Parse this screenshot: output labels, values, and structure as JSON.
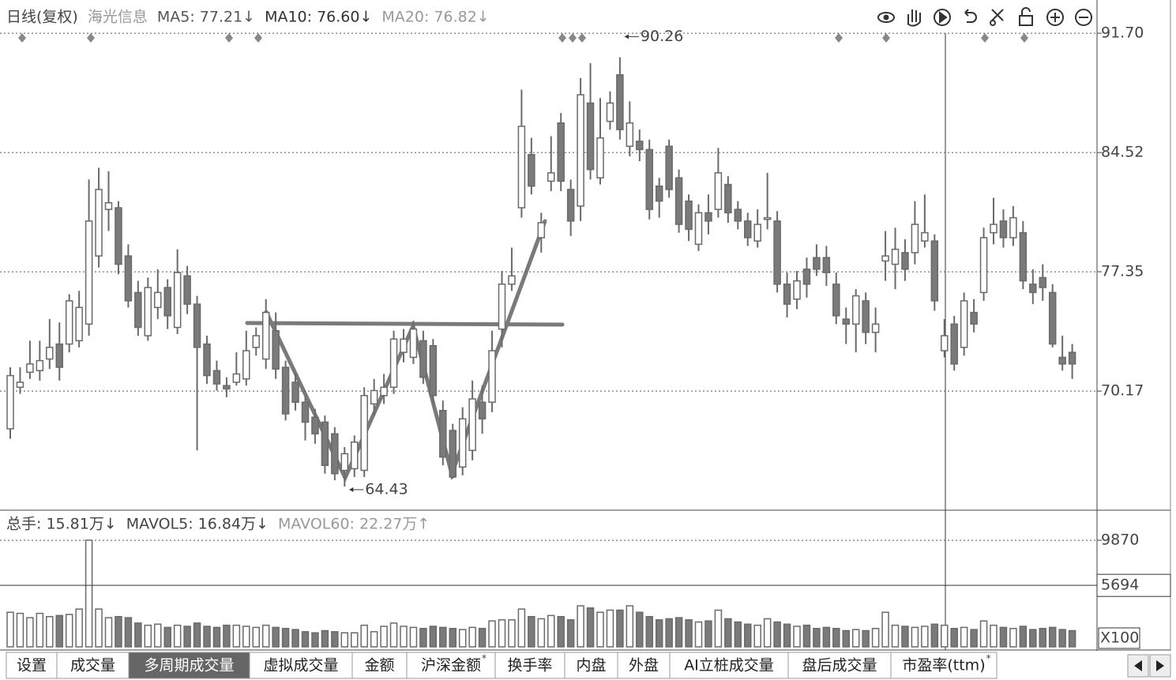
{
  "chart_data": [
    {
      "type": "candlestick",
      "header": [
        {
          "text": "日线(复权)",
          "color": "#444"
        },
        {
          "text": "海光信息",
          "color": "#999"
        },
        {
          "text": "MA5: 77.21↓",
          "color": "#555"
        },
        {
          "text": "MA10: 76.60↓",
          "color": "#333"
        },
        {
          "text": "MA20: 76.82↓",
          "color": "#999"
        }
      ],
      "open": [
        67.9,
        70.4,
        71.3,
        71.4,
        72.1,
        73.0,
        73.0,
        73.2,
        74.2,
        78.3,
        81.1,
        81.2,
        78.3,
        76.1,
        73.5,
        75.2,
        76.4,
        74.0,
        77.1,
        75.4,
        73.0,
        71.4,
        70.5,
        70.7,
        70.9,
        72.8,
        72.1,
        73.8,
        71.6,
        70.7,
        69.5,
        68.6,
        68.3,
        67.6,
        65.4,
        65.5,
        65.4,
        69.4,
        69.9,
        70.4,
        72.5,
        72.2,
        73.2,
        72.9,
        69.0,
        67.8,
        65.6,
        66.6,
        69.5,
        69.5,
        73.9,
        76.6,
        81.2,
        84.4,
        79.4,
        82.8,
        86.3,
        82.3,
        81.3,
        87.5,
        83.0,
        86.4,
        89.2,
        84.9,
        85.2,
        84.7,
        82.5,
        84.9,
        83.0,
        81.6,
        79.0,
        80.9,
        81.1,
        82.6,
        81.1,
        80.4,
        79.2,
        80.5,
        80.4,
        76.6,
        75.7,
        77.5,
        78.2,
        78.2,
        76.6,
        74.5,
        74.2,
        75.6,
        73.7,
        78.0,
        77.8,
        78.5,
        78.5,
        79.2,
        79.2,
        72.6,
        74.2,
        72.8,
        74.9,
        76.1,
        79.7,
        80.4,
        79.4,
        79.7,
        76.6,
        77.0,
        76.1,
        72.2,
        72.5
      ],
      "high": [
        71.6,
        71.6,
        73.2,
        73.2,
        74.5,
        74.3,
        76.0,
        76.2,
        82.9,
        83.6,
        83.4,
        81.6,
        79.0,
        76.8,
        77.0,
        77.5,
        76.9,
        78.7,
        77.7,
        75.9,
        73.5,
        72.0,
        71.0,
        72.5,
        73.8,
        74.0,
        75.7,
        74.9,
        72.0,
        71.2,
        69.9,
        69.1,
        68.7,
        68.0,
        66.8,
        67.5,
        70.4,
        70.9,
        71.2,
        73.8,
        73.9,
        74.4,
        73.8,
        73.3,
        69.6,
        68.2,
        69.2,
        70.8,
        70.5,
        73.8,
        77.4,
        78.8,
        88.3,
        85.4,
        80.9,
        85.5,
        86.9,
        82.9,
        89.0,
        89.9,
        87.8,
        88.2,
        90.26,
        87.6,
        85.9,
        85.3,
        83.0,
        85.3,
        83.5,
        82.0,
        81.4,
        82.0,
        84.8,
        83.1,
        81.6,
        80.9,
        81.1,
        83.3,
        81.0,
        77.3,
        77.4,
        78.2,
        79.0,
        78.9,
        77.3,
        75.2,
        76.3,
        76.1,
        75.2,
        79.8,
        80.0,
        79.3,
        81.6,
        82.0,
        79.6,
        74.5,
        74.7,
        76.1,
        75.7,
        80.0,
        81.8,
        81.1,
        81.3,
        80.4,
        77.5,
        77.8,
        76.6,
        73.5,
        73.0
      ],
      "low": [
        67.3,
        70.0,
        70.9,
        70.8,
        71.5,
        70.8,
        72.5,
        72.8,
        73.5,
        77.6,
        79.8,
        77.2,
        75.2,
        73.5,
        73.2,
        74.5,
        73.9,
        73.6,
        74.8,
        66.6,
        70.6,
        70.2,
        69.8,
        70.5,
        70.5,
        72.3,
        71.5,
        70.9,
        68.4,
        69.0,
        67.2,
        67.0,
        65.2,
        64.8,
        64.43,
        65.0,
        65.0,
        68.7,
        69.4,
        70.0,
        71.9,
        71.8,
        70.6,
        69.4,
        65.7,
        64.9,
        65.1,
        66.0,
        67.6,
        68.9,
        72.8,
        76.2,
        80.6,
        82.0,
        78.5,
        82.2,
        82.2,
        79.5,
        80.4,
        82.9,
        82.6,
        85.9,
        85.3,
        84.3,
        84.0,
        80.5,
        80.6,
        81.8,
        79.7,
        79.2,
        78.6,
        79.6,
        80.6,
        80.3,
        79.9,
        78.9,
        78.8,
        79.9,
        76.1,
        74.6,
        75.1,
        75.8,
        77.1,
        76.5,
        74.2,
        73.0,
        72.5,
        73.0,
        72.5,
        76.8,
        76.3,
        76.8,
        77.8,
        78.8,
        75.0,
        72.2,
        71.4,
        72.3,
        73.7,
        75.6,
        79.0,
        78.8,
        78.9,
        76.3,
        75.4,
        75.6,
        72.8,
        71.4,
        70.9
      ],
      "close": [
        71.1,
        70.7,
        71.8,
        72.0,
        72.8,
        71.6,
        75.6,
        75.2,
        80.4,
        82.3,
        81.5,
        77.8,
        75.6,
        74.0,
        76.4,
        76.1,
        74.7,
        77.3,
        75.4,
        72.8,
        71.1,
        70.6,
        70.3,
        71.2,
        72.6,
        73.5,
        74.9,
        71.5,
        68.8,
        69.5,
        68.3,
        67.6,
        65.7,
        65.2,
        66.4,
        67.1,
        69.9,
        70.2,
        70.4,
        73.3,
        73.3,
        73.9,
        71.0,
        69.9,
        66.2,
        65.0,
        68.5,
        69.7,
        68.5,
        72.6,
        76.6,
        77.1,
        86.1,
        82.5,
        80.3,
        83.3,
        82.8,
        80.4,
        88.0,
        83.5,
        85.4,
        87.5,
        85.9,
        86.3,
        84.7,
        81.1,
        81.6,
        82.3,
        80.2,
        79.9,
        80.9,
        80.4,
        83.3,
        80.9,
        80.4,
        79.4,
        80.2,
        80.6,
        76.6,
        75.4,
        76.8,
        76.6,
        77.5,
        77.3,
        74.7,
        74.2,
        75.9,
        73.7,
        74.2,
        78.3,
        78.7,
        77.5,
        80.2,
        79.7,
        75.6,
        73.5,
        71.8,
        75.6,
        74.2,
        79.4,
        80.2,
        79.4,
        80.6,
        76.8,
        76.1,
        76.4,
        73.0,
        71.8,
        71.8
      ],
      "ylim": [
        63.05,
        93.7
      ],
      "yticks": [
        {
          "value": 91.7,
          "label": "91.70"
        },
        84.52,
        77.35,
        70.17
      ],
      "grid": true,
      "marked_extremes": [
        90.26,
        64.43
      ],
      "up_color": "#ffffff",
      "down_color": "#7a7a7a",
      "edge_color": "#6a6a6a"
    },
    {
      "type": "bar",
      "header": [
        {
          "text": "总手: 15.81万↓",
          "color": "#444"
        },
        {
          "text": "MAVOL5: 16.84万↓",
          "color": "#444"
        },
        {
          "text": "MAVOL60: 22.27万↑",
          "color": "#999"
        }
      ],
      "values": [
        3200,
        3100,
        2700,
        3100,
        2800,
        2900,
        3000,
        3500,
        9880,
        3500,
        2700,
        2800,
        2700,
        2200,
        2000,
        2100,
        1800,
        2000,
        1900,
        2200,
        1900,
        1800,
        2000,
        2000,
        1900,
        1800,
        2000,
        1800,
        1700,
        1600,
        1400,
        1300,
        1500,
        1400,
        1300,
        1300,
        2000,
        1400,
        1900,
        2200,
        1900,
        1800,
        1700,
        1900,
        1800,
        1700,
        1600,
        1800,
        1700,
        2400,
        2500,
        2500,
        3500,
        2800,
        2600,
        2900,
        2800,
        2500,
        3800,
        3600,
        3200,
        3400,
        3400,
        3800,
        3200,
        2800,
        2500,
        2600,
        2700,
        2500,
        2300,
        2400,
        3400,
        2600,
        2300,
        2100,
        2000,
        2600,
        2300,
        2100,
        1900,
        2000,
        1700,
        1800,
        1700,
        1500,
        1600,
        1500,
        1700,
        3200,
        2000,
        1900,
        1800,
        1900,
        2100,
        2000,
        1700,
        1800,
        1600,
        2400,
        2000,
        1800,
        1700,
        1900,
        1600,
        1700,
        1800,
        1600,
        1500
      ],
      "ylim": [
        0,
        12000
      ],
      "yticks": [
        9870
      ],
      "cursor_value": 5694,
      "unit_label": "X100",
      "grid": true
    }
  ],
  "tabs": [
    {
      "label": "设置"
    },
    {
      "label": "成交量"
    },
    {
      "label": "多周期成交量",
      "active": true
    },
    {
      "label": "虚拟成交量"
    },
    {
      "label": "金额"
    },
    {
      "label": "沪深金额",
      "note": "*"
    },
    {
      "label": "换手率"
    },
    {
      "label": "内盘"
    },
    {
      "label": "外盘"
    },
    {
      "label": "AI立桩成交量"
    },
    {
      "label": "盘后成交量"
    },
    {
      "label": "市盈率(ttm)",
      "note": "*"
    }
  ]
}
